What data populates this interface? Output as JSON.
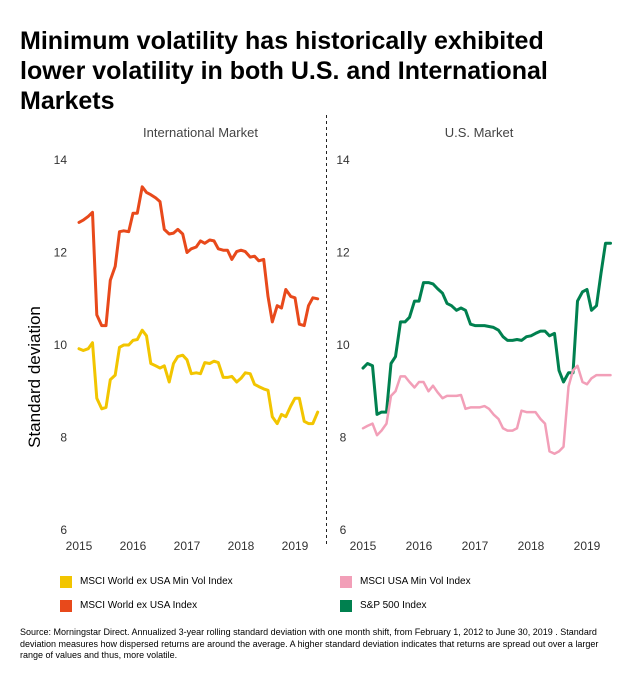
{
  "title": "Minimum volatility has historically exhibited lower volatility in both U.S. and International Markets",
  "ylabel": "Standard deviation",
  "source": "Source: Morningstar Direct. Annualized 3-year rolling standard deviation with one month shift, from February 1, 2012 to June 30, 2019 . Standard deviation measures how dispersed returns are around the average. A higher standard deviation indicates that returns are spread out over a larger range of values and thus, more volatile.",
  "legend": [
    {
      "label": "MSCI World ex USA Min Vol Index",
      "color": "#f2c500"
    },
    {
      "label": "MSCI World ex USA Index",
      "color": "#e8491b"
    },
    {
      "label": "MSCI USA Min Vol Index",
      "color": "#f29fb8"
    },
    {
      "label": "S&P 500 Index",
      "color": "#00804f"
    }
  ],
  "chart_data": [
    {
      "type": "line",
      "title": "International Market",
      "ylabel": "Standard deviation",
      "ylim": [
        6,
        14
      ],
      "yticks": [
        6,
        8,
        10,
        12,
        14
      ],
      "xlim": [
        2015,
        2019.5
      ],
      "xticks": [
        2015,
        2016,
        2017,
        2018,
        2019
      ],
      "series": [
        {
          "name": "MSCI World ex USA Index",
          "color": "#e8491b",
          "x": [
            2015.0,
            2015.08,
            2015.17,
            2015.25,
            2015.33,
            2015.42,
            2015.5,
            2015.58,
            2015.67,
            2015.75,
            2015.83,
            2015.92,
            2016.0,
            2016.08,
            2016.17,
            2016.25,
            2016.33,
            2016.42,
            2016.5,
            2016.58,
            2016.67,
            2016.75,
            2016.83,
            2016.92,
            2017.0,
            2017.08,
            2017.17,
            2017.25,
            2017.33,
            2017.42,
            2017.5,
            2017.58,
            2017.67,
            2017.75,
            2017.83,
            2017.92,
            2018.0,
            2018.08,
            2018.17,
            2018.25,
            2018.33,
            2018.42,
            2018.5,
            2018.58,
            2018.67,
            2018.75,
            2018.83,
            2018.92,
            2019.0,
            2019.08,
            2019.17,
            2019.25,
            2019.33,
            2019.42
          ],
          "y": [
            12.65,
            12.7,
            12.78,
            12.87,
            10.65,
            10.42,
            10.42,
            11.4,
            11.7,
            12.45,
            12.47,
            12.45,
            12.85,
            12.85,
            13.42,
            13.3,
            13.25,
            13.18,
            13.1,
            12.5,
            12.4,
            12.42,
            12.5,
            12.4,
            12.0,
            12.08,
            12.12,
            12.25,
            12.2,
            12.27,
            12.25,
            12.08,
            12.05,
            12.05,
            11.85,
            12.02,
            12.05,
            12.02,
            11.9,
            11.92,
            11.82,
            11.85,
            11.05,
            10.5,
            10.85,
            10.8,
            11.2,
            11.05,
            11.02,
            10.45,
            10.42,
            10.85,
            11.02,
            11.0
          ],
          "width": 3
        },
        {
          "name": "MSCI World ex USA Min Vol Index",
          "color": "#f2c500",
          "x": [
            2015.0,
            2015.08,
            2015.17,
            2015.25,
            2015.33,
            2015.42,
            2015.5,
            2015.58,
            2015.67,
            2015.75,
            2015.83,
            2015.92,
            2016.0,
            2016.08,
            2016.17,
            2016.25,
            2016.33,
            2016.42,
            2016.5,
            2016.58,
            2016.67,
            2016.75,
            2016.83,
            2016.92,
            2017.0,
            2017.08,
            2017.17,
            2017.25,
            2017.33,
            2017.42,
            2017.5,
            2017.58,
            2017.67,
            2017.75,
            2017.83,
            2017.92,
            2018.0,
            2018.08,
            2018.17,
            2018.25,
            2018.33,
            2018.42,
            2018.5,
            2018.58,
            2018.67,
            2018.75,
            2018.83,
            2018.92,
            2019.0,
            2019.08,
            2019.17,
            2019.25,
            2019.33,
            2019.42
          ],
          "y": [
            9.92,
            9.88,
            9.92,
            10.05,
            8.85,
            8.62,
            8.65,
            9.25,
            9.35,
            9.95,
            10.0,
            10.0,
            10.1,
            10.12,
            10.32,
            10.2,
            9.6,
            9.55,
            9.5,
            9.55,
            9.2,
            9.6,
            9.75,
            9.78,
            9.68,
            9.38,
            9.4,
            9.38,
            9.62,
            9.6,
            9.65,
            9.62,
            9.3,
            9.3,
            9.32,
            9.2,
            9.28,
            9.4,
            9.38,
            9.15,
            9.1,
            9.05,
            9.02,
            8.45,
            8.3,
            8.5,
            8.45,
            8.68,
            8.85,
            8.85,
            8.35,
            8.3,
            8.3,
            8.55
          ],
          "width": 3
        }
      ]
    },
    {
      "type": "line",
      "title": "U.S. Market",
      "ylim": [
        6,
        14
      ],
      "yticks": [
        6,
        8,
        10,
        12,
        14
      ],
      "xlim": [
        2015,
        2019.5
      ],
      "xticks": [
        2015,
        2016,
        2017,
        2018,
        2019
      ],
      "series": [
        {
          "name": "S&P 500 Index",
          "color": "#00804f",
          "x": [
            2015.0,
            2015.08,
            2015.17,
            2015.25,
            2015.33,
            2015.42,
            2015.5,
            2015.58,
            2015.67,
            2015.75,
            2015.83,
            2015.92,
            2016.0,
            2016.08,
            2016.17,
            2016.25,
            2016.33,
            2016.42,
            2016.5,
            2016.58,
            2016.67,
            2016.75,
            2016.83,
            2016.92,
            2017.0,
            2017.08,
            2017.17,
            2017.25,
            2017.33,
            2017.42,
            2017.5,
            2017.58,
            2017.67,
            2017.75,
            2017.83,
            2017.92,
            2018.0,
            2018.08,
            2018.17,
            2018.25,
            2018.33,
            2018.42,
            2018.5,
            2018.58,
            2018.67,
            2018.75,
            2018.83,
            2018.92,
            2019.0,
            2019.08,
            2019.17,
            2019.25,
            2019.33,
            2019.42
          ],
          "y": [
            9.5,
            9.6,
            9.55,
            8.5,
            8.55,
            8.55,
            9.6,
            9.75,
            10.5,
            10.5,
            10.6,
            10.95,
            10.95,
            11.35,
            11.35,
            11.32,
            11.22,
            11.12,
            10.9,
            10.85,
            10.75,
            10.8,
            10.75,
            10.45,
            10.42,
            10.42,
            10.42,
            10.4,
            10.38,
            10.32,
            10.18,
            10.1,
            10.1,
            10.12,
            10.1,
            10.18,
            10.2,
            10.25,
            10.3,
            10.3,
            10.2,
            10.25,
            9.45,
            9.2,
            9.4,
            9.4,
            10.95,
            11.15,
            11.2,
            10.75,
            10.85,
            11.55,
            12.2,
            12.2
          ],
          "width": 3
        },
        {
          "name": "MSCI USA Min Vol Index",
          "color": "#f29fb8",
          "x": [
            2015.0,
            2015.08,
            2015.17,
            2015.25,
            2015.33,
            2015.42,
            2015.5,
            2015.58,
            2015.67,
            2015.75,
            2015.83,
            2015.92,
            2016.0,
            2016.08,
            2016.17,
            2016.25,
            2016.33,
            2016.42,
            2016.5,
            2016.58,
            2016.67,
            2016.75,
            2016.83,
            2016.92,
            2017.0,
            2017.08,
            2017.17,
            2017.25,
            2017.33,
            2017.42,
            2017.5,
            2017.58,
            2017.67,
            2017.75,
            2017.83,
            2017.92,
            2018.0,
            2018.08,
            2018.17,
            2018.25,
            2018.33,
            2018.42,
            2018.5,
            2018.58,
            2018.67,
            2018.75,
            2018.83,
            2018.92,
            2019.0,
            2019.08,
            2019.17,
            2019.25,
            2019.33,
            2019.42
          ],
          "y": [
            8.2,
            8.25,
            8.3,
            8.05,
            8.15,
            8.3,
            8.9,
            9.0,
            9.32,
            9.32,
            9.2,
            9.08,
            9.2,
            9.2,
            9.0,
            9.12,
            8.98,
            8.85,
            8.9,
            8.9,
            8.9,
            8.92,
            8.62,
            8.65,
            8.65,
            8.65,
            8.68,
            8.62,
            8.5,
            8.4,
            8.2,
            8.15,
            8.15,
            8.2,
            8.58,
            8.55,
            8.55,
            8.55,
            8.4,
            8.3,
            7.7,
            7.65,
            7.7,
            7.8,
            9.1,
            9.45,
            9.55,
            9.2,
            9.15,
            9.28,
            9.35,
            9.35,
            9.35,
            9.35
          ],
          "width": 2.5
        }
      ]
    }
  ]
}
